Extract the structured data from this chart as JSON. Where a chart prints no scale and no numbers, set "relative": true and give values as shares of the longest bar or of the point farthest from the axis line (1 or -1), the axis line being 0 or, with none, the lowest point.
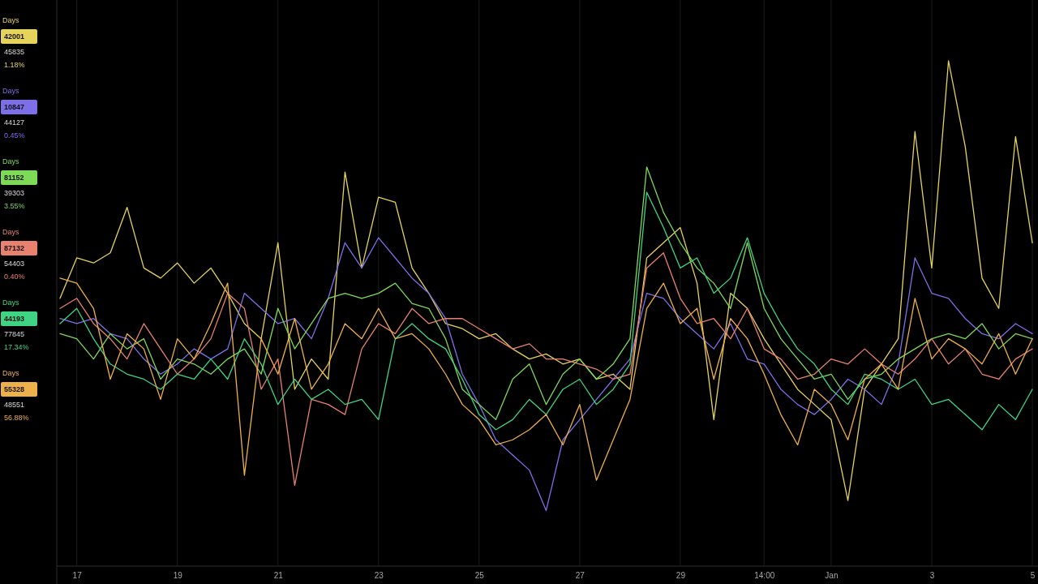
{
  "chart_data": {
    "type": "line",
    "relative": true,
    "legend": "left",
    "grid": "x",
    "categories": [
      null,
      "17",
      null,
      null,
      null,
      null,
      null,
      "19",
      null,
      null,
      null,
      null,
      null,
      "21",
      null,
      null,
      null,
      null,
      null,
      "23",
      null,
      null,
      null,
      null,
      null,
      "25",
      null,
      null,
      null,
      null,
      null,
      "27",
      null,
      null,
      null,
      null,
      null,
      "29",
      null,
      null,
      null,
      null,
      "14:00",
      null,
      null,
      null,
      "Jan",
      null,
      null,
      null,
      null,
      null,
      "3",
      null,
      null,
      null,
      null,
      null,
      "5"
    ],
    "series": [
      {
        "name": "Days",
        "color": "#e6d35c",
        "values": [
          0.53,
          0.61,
          0.6,
          0.62,
          0.71,
          0.59,
          0.57,
          0.6,
          0.56,
          0.59,
          0.54,
          0.48,
          0.45,
          0.64,
          0.35,
          0.41,
          0.37,
          0.78,
          0.59,
          0.73,
          0.72,
          0.59,
          0.54,
          0.48,
          0.47,
          0.45,
          0.46,
          0.43,
          0.41,
          0.42,
          0.4,
          0.41,
          0.37,
          0.38,
          0.35,
          0.61,
          0.64,
          0.67,
          0.56,
          0.29,
          0.54,
          0.51,
          0.45,
          0.4,
          0.35,
          0.32,
          0.29,
          0.13,
          0.35,
          0.4,
          0.45,
          0.86,
          0.59,
          1.0,
          0.83,
          0.57,
          0.51,
          0.85,
          0.64
        ]
      },
      {
        "name": "Days",
        "color": "#7d6fe8",
        "values": [
          0.49,
          0.48,
          0.49,
          0.46,
          0.45,
          0.41,
          0.38,
          0.4,
          0.43,
          0.41,
          0.43,
          0.54,
          0.51,
          0.48,
          0.49,
          0.45,
          0.53,
          0.64,
          0.59,
          0.65,
          0.61,
          0.57,
          0.54,
          0.49,
          0.38,
          0.32,
          0.25,
          0.22,
          0.19,
          0.11,
          0.25,
          0.29,
          0.33,
          0.37,
          0.41,
          0.54,
          0.53,
          0.49,
          0.46,
          0.43,
          0.48,
          0.41,
          0.4,
          0.35,
          0.32,
          0.3,
          0.33,
          0.37,
          0.35,
          0.32,
          0.4,
          0.61,
          0.54,
          0.53,
          0.49,
          0.46,
          0.45,
          0.48,
          0.46
        ]
      },
      {
        "name": "Days",
        "color": "#7ed957",
        "values": [
          0.46,
          0.45,
          0.41,
          0.46,
          0.43,
          0.45,
          0.37,
          0.41,
          0.4,
          0.38,
          0.41,
          0.43,
          0.38,
          0.51,
          0.43,
          0.48,
          0.53,
          0.54,
          0.53,
          0.54,
          0.56,
          0.52,
          0.51,
          0.45,
          0.35,
          0.32,
          0.29,
          0.37,
          0.4,
          0.32,
          0.38,
          0.41,
          0.37,
          0.4,
          0.45,
          0.79,
          0.7,
          0.64,
          0.59,
          0.56,
          0.51,
          0.64,
          0.51,
          0.45,
          0.41,
          0.37,
          0.38,
          0.33,
          0.37,
          0.38,
          0.41,
          0.43,
          0.45,
          0.46,
          0.45,
          0.48,
          0.43,
          0.46,
          0.45
        ]
      },
      {
        "name": "Days",
        "color": "#e8826f",
        "values": [
          0.51,
          0.53,
          0.48,
          0.45,
          0.41,
          0.48,
          0.43,
          0.38,
          0.41,
          0.45,
          0.54,
          0.51,
          0.35,
          0.41,
          0.16,
          0.33,
          0.32,
          0.3,
          0.43,
          0.48,
          0.46,
          0.51,
          0.48,
          0.49,
          0.49,
          0.47,
          0.45,
          0.43,
          0.44,
          0.41,
          0.41,
          0.4,
          0.39,
          0.37,
          0.38,
          0.59,
          0.62,
          0.53,
          0.48,
          0.49,
          0.45,
          0.51,
          0.43,
          0.41,
          0.37,
          0.38,
          0.41,
          0.4,
          0.43,
          0.4,
          0.38,
          0.41,
          0.45,
          0.4,
          0.43,
          0.38,
          0.37,
          0.41,
          0.43
        ]
      },
      {
        "name": "Days",
        "color": "#3fd483",
        "values": [
          0.48,
          0.51,
          0.45,
          0.4,
          0.38,
          0.37,
          0.35,
          0.38,
          0.37,
          0.41,
          0.37,
          0.45,
          0.4,
          0.32,
          0.37,
          0.33,
          0.35,
          0.32,
          0.33,
          0.29,
          0.45,
          0.48,
          0.45,
          0.43,
          0.37,
          0.3,
          0.27,
          0.29,
          0.33,
          0.3,
          0.35,
          0.37,
          0.32,
          0.35,
          0.4,
          0.74,
          0.67,
          0.59,
          0.61,
          0.54,
          0.57,
          0.65,
          0.54,
          0.48,
          0.43,
          0.4,
          0.35,
          0.32,
          0.38,
          0.37,
          0.35,
          0.37,
          0.32,
          0.33,
          0.3,
          0.27,
          0.32,
          0.29,
          0.35
        ]
      },
      {
        "name": "Days",
        "color": "#eeb04a",
        "values": [
          0.57,
          0.56,
          0.51,
          0.37,
          0.46,
          0.43,
          0.33,
          0.45,
          0.41,
          0.48,
          0.56,
          0.18,
          0.45,
          0.38,
          0.49,
          0.35,
          0.4,
          0.48,
          0.45,
          0.51,
          0.45,
          0.46,
          0.43,
          0.38,
          0.32,
          0.29,
          0.24,
          0.25,
          0.27,
          0.3,
          0.24,
          0.32,
          0.17,
          0.25,
          0.33,
          0.51,
          0.56,
          0.48,
          0.51,
          0.37,
          0.49,
          0.45,
          0.38,
          0.3,
          0.24,
          0.35,
          0.32,
          0.25,
          0.37,
          0.4,
          0.35,
          0.53,
          0.41,
          0.45,
          0.43,
          0.4,
          0.46,
          0.38,
          0.45
        ]
      }
    ],
    "annotations": [
      "42001",
      "45835",
      "1.18%",
      "10847",
      "44127",
      "0.45%",
      "81152",
      "39303",
      "3.55%",
      "87132",
      "54403",
      "0.40%",
      "44193",
      "77845",
      "17.34%",
      "55328",
      "48551",
      "56.88%"
    ]
  }
}
